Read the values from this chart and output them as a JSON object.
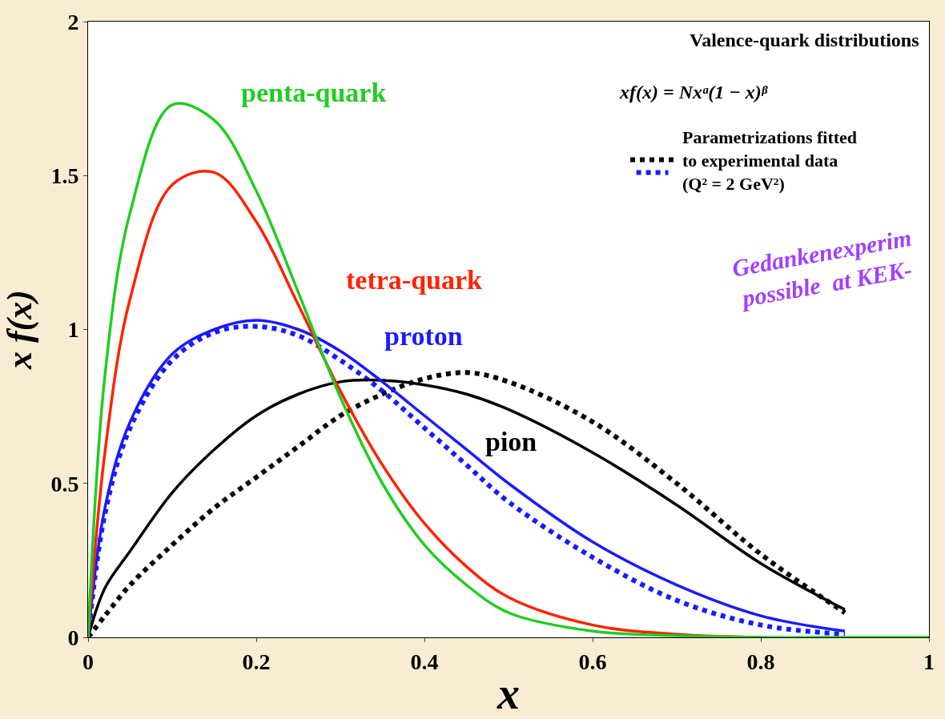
{
  "chart_data": {
    "type": "line",
    "title": "Valence-quark distributions",
    "subtitle": "xf(x) = Nxᵅ(1 − x)ᵝ",
    "xlabel": "x",
    "ylabel": "x f(x)",
    "xlim": [
      0,
      1
    ],
    "ylim": [
      0,
      2
    ],
    "xticks": [
      0,
      0.2,
      0.4,
      0.6,
      0.8,
      1
    ],
    "yticks": [
      0,
      0.5,
      1,
      1.5,
      2
    ],
    "marker": "none",
    "legend": "top right",
    "x": [
      0,
      0.02,
      0.05,
      0.1,
      0.15,
      0.2,
      0.25,
      0.3,
      0.35,
      0.4,
      0.45,
      0.5,
      0.6,
      0.7,
      0.8,
      0.9,
      1
    ],
    "series": [
      {
        "name": "penta-quark",
        "color": "#22cc22",
        "line_style": "solid",
        "values": [
          0,
          0.85,
          1.38,
          1.73,
          1.68,
          1.45,
          1.12,
          0.78,
          0.5,
          0.3,
          0.17,
          0.08,
          0.02,
          0.005,
          0,
          0,
          0
        ]
      },
      {
        "name": "tetra-quark",
        "color": "#ff2200",
        "line_style": "solid",
        "values": [
          0,
          0.6,
          1.1,
          1.47,
          1.51,
          1.35,
          1.08,
          0.8,
          0.56,
          0.37,
          0.23,
          0.13,
          0.04,
          0.01,
          0,
          null,
          null
        ]
      },
      {
        "name": "proton",
        "color": "#1a1aff",
        "line_style": "solid",
        "values": [
          0,
          0.42,
          0.7,
          0.92,
          1.0,
          1.03,
          1.0,
          0.93,
          0.83,
          0.72,
          0.61,
          0.5,
          0.31,
          0.17,
          0.07,
          0.02,
          null
        ]
      },
      {
        "name": "pion",
        "color": "#000000",
        "line_style": "solid",
        "values": [
          0,
          0.16,
          0.28,
          0.47,
          0.61,
          0.72,
          0.79,
          0.83,
          0.835,
          0.82,
          0.79,
          0.74,
          0.6,
          0.43,
          0.24,
          0.09,
          null
        ]
      },
      {
        "color": "#1a1aff",
        "line_style": "dotted",
        "values": [
          0,
          0.4,
          0.68,
          0.9,
          0.99,
          1.01,
          0.98,
          0.9,
          0.8,
          0.68,
          0.56,
          0.44,
          0.26,
          0.12,
          0.04,
          0.01,
          null
        ]
      },
      {
        "name": "Parametrizations fitted\nto experimental data\n(Q² = 2 GeV²)",
        "color": "#000000",
        "line_style": "dotted",
        "values": [
          0,
          0.07,
          0.17,
          0.3,
          0.42,
          0.52,
          0.62,
          0.72,
          0.79,
          0.84,
          0.86,
          0.83,
          0.7,
          0.5,
          0.27,
          0.08,
          null
        ]
      }
    ],
    "annotations": [
      "Gedankenexperim\npossible  at KEK-"
    ]
  }
}
